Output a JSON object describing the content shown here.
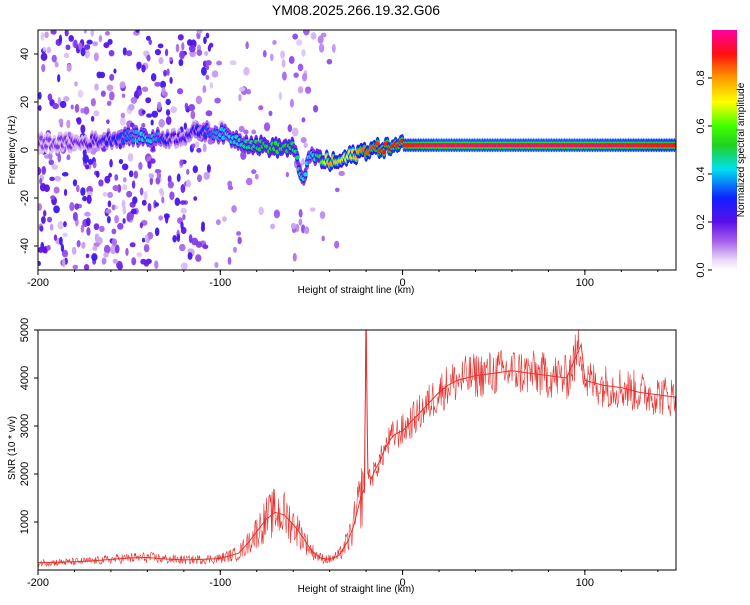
{
  "figure_title": "YM08.2025.266.19.32.G06",
  "colors": {
    "trace": "#e8302c",
    "frame": "#000000",
    "background": "#ffffff"
  },
  "chart_data": [
    {
      "type": "heatmap",
      "title": "",
      "xlabel": "Height of straight line (km)",
      "ylabel": "Frequency (Hz)",
      "xlim": [
        -200,
        150
      ],
      "ylim": [
        -50,
        50
      ],
      "x_ticks": [
        -200,
        -100,
        0,
        100
      ],
      "y_ticks": [
        40,
        20,
        0,
        -20,
        -40
      ],
      "colorbar": {
        "label": "Normalized spectral amplitude",
        "range": [
          0.0,
          1.0
        ],
        "ticks": [
          "0.0",
          "0.2",
          "0.4",
          "0.6",
          "0.8"
        ],
        "colormap": "rainbow (white-violet-blue-cyan-green-yellow-orange-red-magenta)"
      },
      "ridge": {
        "description": "dominant spectral line (frequency vs height)",
        "x": [
          -200,
          -175,
          -150,
          -140,
          -125,
          -110,
          -100,
          -90,
          -80,
          -70,
          -60,
          -55,
          -50,
          -45,
          -40,
          -35,
          -30,
          -20,
          -10,
          0,
          20,
          50,
          100,
          150
        ],
        "freq": [
          3,
          3,
          6,
          5,
          5,
          8,
          7,
          4,
          2,
          1,
          1,
          -12,
          -2,
          -4,
          -5,
          -5,
          -3,
          0,
          1,
          2,
          2,
          2,
          2,
          2
        ],
        "amplitude": [
          0.15,
          0.18,
          0.35,
          0.45,
          0.2,
          0.3,
          0.4,
          0.45,
          0.5,
          0.55,
          0.5,
          0.45,
          0.4,
          0.55,
          0.8,
          0.75,
          0.7,
          0.85,
          0.9,
          0.9,
          0.95,
          0.95,
          0.95,
          0.9
        ]
      }
    },
    {
      "type": "line",
      "title": "",
      "xlabel": "Height of straight line (km)",
      "ylabel": "SNR (10 * v/v)",
      "xlim": [
        -200,
        150
      ],
      "ylim": [
        0,
        5000
      ],
      "x_ticks": [
        -200,
        -100,
        0,
        100
      ],
      "y_ticks": [
        1000,
        2000,
        3000,
        4000,
        5000
      ],
      "series": [
        {
          "name": "SNR",
          "x": [
            -200,
            -190,
            -180,
            -170,
            -160,
            -150,
            -140,
            -130,
            -120,
            -110,
            -100,
            -90,
            -85,
            -80,
            -75,
            -70,
            -65,
            -60,
            -55,
            -50,
            -45,
            -40,
            -35,
            -30,
            -27,
            -25,
            -23,
            -21,
            -20,
            -19,
            -17,
            -15,
            -12,
            -10,
            -7,
            -5,
            -3,
            0,
            5,
            10,
            15,
            20,
            25,
            30,
            40,
            50,
            60,
            70,
            80,
            90,
            98,
            100,
            110,
            120,
            130,
            140,
            150
          ],
          "y": [
            150,
            160,
            170,
            190,
            220,
            250,
            260,
            230,
            210,
            220,
            240,
            350,
            550,
            800,
            1050,
            1200,
            1150,
            950,
            700,
            400,
            250,
            220,
            300,
            600,
            900,
            1200,
            1500,
            1700,
            5000,
            2000,
            1900,
            2100,
            2300,
            2500,
            2700,
            2800,
            2850,
            2900,
            3100,
            3300,
            3500,
            3700,
            3850,
            3950,
            4050,
            4100,
            4150,
            4100,
            4050,
            4000,
            4700,
            3950,
            3850,
            3800,
            3700,
            3650,
            3600
          ]
        }
      ]
    }
  ]
}
